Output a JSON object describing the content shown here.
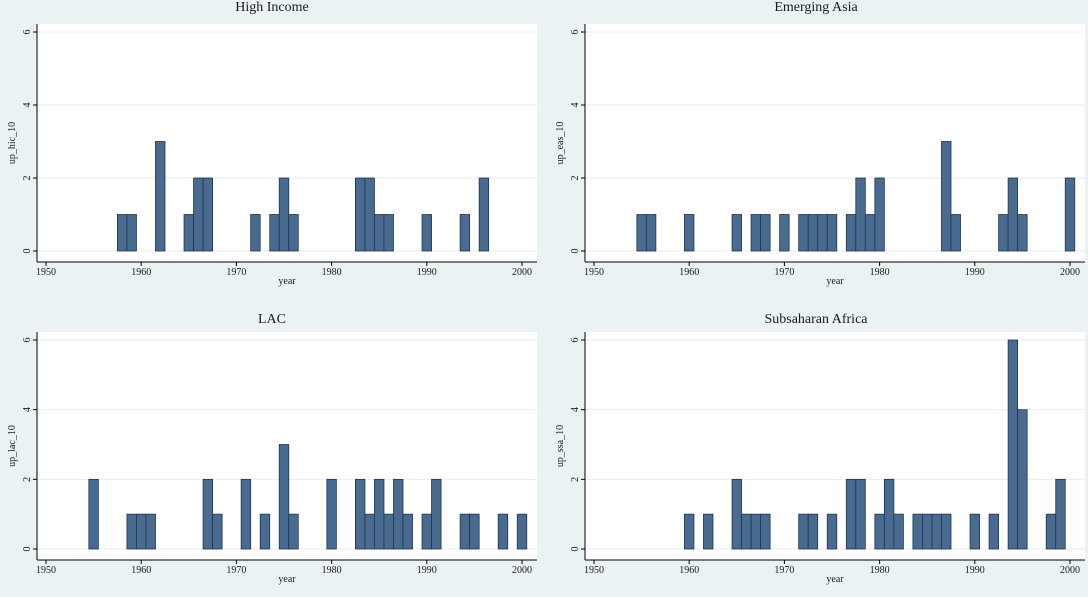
{
  "colors": {
    "background": "#eaf2f3",
    "plot_area": "#ffffff",
    "bar_fill": "#486b8f",
    "bar_stroke": "#1f3550",
    "grid": "#e6eef0",
    "axis": "#000000"
  },
  "chart_data": [
    {
      "type": "bar",
      "title": "High Income",
      "xlabel": "year",
      "ylabel": "up_hic_10",
      "xlim": [
        1950,
        2000
      ],
      "ylim": [
        0,
        6
      ],
      "xticks": [
        1950,
        1960,
        1970,
        1980,
        1990,
        2000
      ],
      "yticks": [
        0,
        2,
        4,
        6
      ],
      "grid": true,
      "x": [
        1958,
        1959,
        1962,
        1965,
        1966,
        1967,
        1972,
        1974,
        1975,
        1976,
        1983,
        1984,
        1985,
        1986,
        1990,
        1994,
        1996
      ],
      "values": [
        1,
        1,
        3,
        1,
        2,
        2,
        1,
        1,
        2,
        1,
        2,
        2,
        1,
        1,
        1,
        1,
        2
      ]
    },
    {
      "type": "bar",
      "title": "Emerging Asia",
      "xlabel": "year",
      "ylabel": "up_eas_10",
      "xlim": [
        1950,
        2000
      ],
      "ylim": [
        0,
        6
      ],
      "xticks": [
        1950,
        1960,
        1970,
        1980,
        1990,
        2000
      ],
      "yticks": [
        0,
        2,
        4,
        6
      ],
      "grid": true,
      "x": [
        1955,
        1956,
        1960,
        1965,
        1967,
        1968,
        1970,
        1972,
        1973,
        1974,
        1975,
        1977,
        1978,
        1979,
        1980,
        1987,
        1988,
        1993,
        1994,
        1995,
        2000
      ],
      "values": [
        1,
        1,
        1,
        1,
        1,
        1,
        1,
        1,
        1,
        1,
        1,
        1,
        2,
        1,
        2,
        3,
        1,
        1,
        2,
        1,
        2
      ]
    },
    {
      "type": "bar",
      "title": "LAC",
      "xlabel": "year",
      "ylabel": "up_lac_10",
      "xlim": [
        1950,
        2000
      ],
      "ylim": [
        0,
        6
      ],
      "xticks": [
        1950,
        1960,
        1970,
        1980,
        1990,
        2000
      ],
      "yticks": [
        0,
        2,
        4,
        6
      ],
      "grid": true,
      "x": [
        1955,
        1959,
        1960,
        1961,
        1967,
        1968,
        1971,
        1973,
        1975,
        1976,
        1980,
        1983,
        1984,
        1985,
        1986,
        1987,
        1988,
        1990,
        1991,
        1994,
        1995,
        1998,
        2000
      ],
      "values": [
        2,
        1,
        1,
        1,
        2,
        1,
        2,
        1,
        3,
        1,
        2,
        2,
        1,
        2,
        1,
        2,
        1,
        1,
        2,
        1,
        1,
        1,
        1
      ]
    },
    {
      "type": "bar",
      "title": "Subsaharan Africa",
      "xlabel": "year",
      "ylabel": "up_ssa_10",
      "xlim": [
        1950,
        2000
      ],
      "ylim": [
        0,
        6
      ],
      "xticks": [
        1950,
        1960,
        1970,
        1980,
        1990,
        2000
      ],
      "yticks": [
        0,
        2,
        4,
        6
      ],
      "grid": true,
      "x": [
        1960,
        1962,
        1965,
        1966,
        1967,
        1968,
        1972,
        1973,
        1975,
        1977,
        1978,
        1980,
        1981,
        1982,
        1984,
        1985,
        1986,
        1987,
        1990,
        1992,
        1994,
        1995,
        1998,
        1999
      ],
      "values": [
        1,
        1,
        2,
        1,
        1,
        1,
        1,
        1,
        1,
        2,
        2,
        1,
        2,
        1,
        1,
        1,
        1,
        1,
        1,
        1,
        6,
        4,
        1,
        2
      ]
    }
  ]
}
